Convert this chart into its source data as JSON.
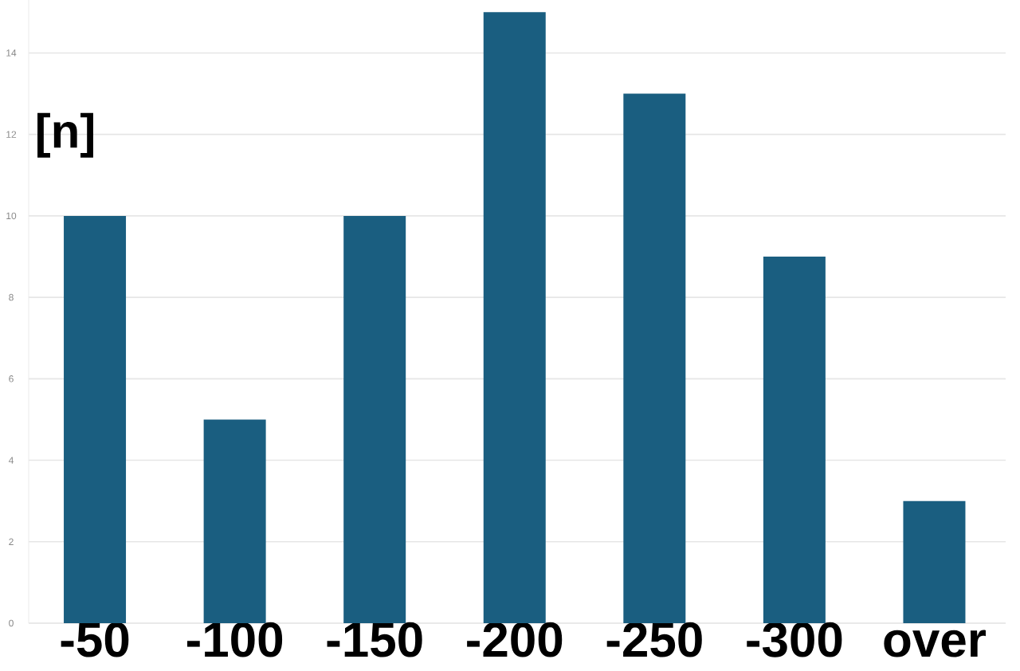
{
  "chart_data": {
    "type": "bar",
    "ylabel": "[n]",
    "categories": [
      "-50",
      "-100",
      "-150",
      "-200",
      "-250",
      "-300",
      "over"
    ],
    "values": [
      10,
      5,
      10,
      15,
      13,
      9,
      3
    ],
    "color": "#1a5e80",
    "ylim": [
      0,
      15.3
    ],
    "yticks": [
      0,
      2,
      4,
      6,
      8,
      10,
      12,
      14
    ],
    "grid": "y"
  }
}
